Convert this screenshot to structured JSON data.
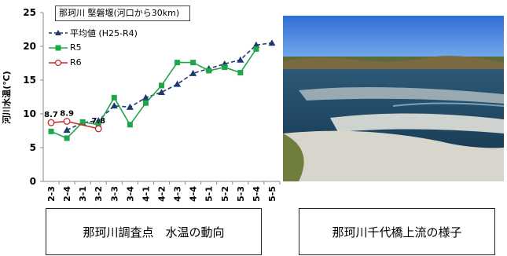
{
  "chart_data": {
    "type": "line",
    "title": "那珂川 堅磐堰(河口から30km)",
    "ylabel": "河川水温(℃)",
    "ylim": [
      0,
      25
    ],
    "yticks": [
      0,
      5,
      10,
      15,
      20,
      25
    ],
    "categories": [
      "2-3",
      "2-4",
      "3-1",
      "3-2",
      "3-3",
      "3-4",
      "4-1",
      "4-2",
      "4-3",
      "4-4",
      "5-1",
      "5-2",
      "5-3",
      "5-4",
      "5-5"
    ],
    "series": [
      {
        "name": "平均値 (H25-R4)",
        "color": "#1f3a6e",
        "style": "dashed",
        "marker": "triangle",
        "values": [
          null,
          7.6,
          8.7,
          9.0,
          11.2,
          11.0,
          12.4,
          13.2,
          14.4,
          16.0,
          16.7,
          17.4,
          18.0,
          20.2,
          20.5
        ]
      },
      {
        "name": "R5",
        "color": "#1fa64a",
        "style": "solid",
        "marker": "square",
        "values": [
          7.4,
          6.4,
          8.8,
          8.4,
          12.4,
          8.4,
          11.6,
          14.2,
          17.6,
          17.6,
          16.4,
          16.9,
          16.1,
          19.6,
          null
        ]
      },
      {
        "name": "R6",
        "color": "#c62828",
        "style": "solid",
        "marker": "circle",
        "values": [
          8.7,
          8.9,
          null,
          7.8,
          null,
          null,
          null,
          null,
          null,
          null,
          null,
          null,
          null,
          null,
          null
        ],
        "labels": [
          "8.7",
          "8.9",
          null,
          "7.8"
        ]
      }
    ],
    "legend_position": "top-left"
  },
  "photo": {
    "description_icon": "river-photo"
  },
  "captions": {
    "left": "那珂川調査点　水温の動向",
    "right": "那珂川千代橋上流の様子"
  }
}
